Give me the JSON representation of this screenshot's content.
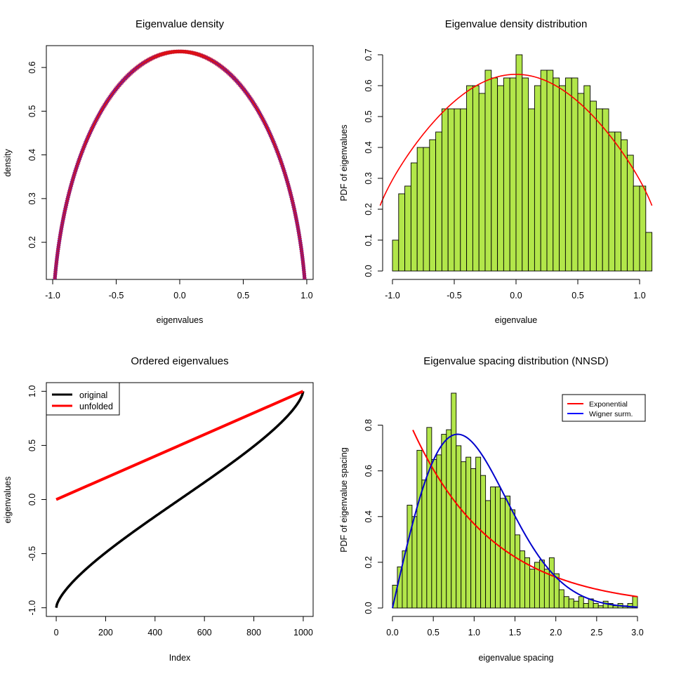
{
  "chart_data": [
    {
      "type": "scatter",
      "title": "Eigenvalue density",
      "xlabel": "eigenvalues",
      "ylabel": "density",
      "xlim": [
        -1.05,
        1.05
      ],
      "ylim": [
        0.115,
        0.65
      ],
      "xticks": [
        "-1.0",
        "-0.5",
        "0.0",
        "0.5",
        "1.0"
      ],
      "yticks": [
        "0.2",
        "0.3",
        "0.4",
        "0.5",
        "0.6"
      ],
      "series": [
        {
          "color": "#0000ff",
          "style": "curve",
          "formula": "semicircle",
          "x_range": [
            -1.0,
            1.0
          ]
        },
        {
          "color": "#ff0000",
          "style": "x-markers",
          "formula": "semicircle",
          "x_range": [
            -1.0,
            1.0
          ],
          "count": 400
        }
      ]
    },
    {
      "type": "bar",
      "title": "Eigenvalue density distribution",
      "xlabel": "eigenvalue",
      "ylabel": "PDF of eigenvalues",
      "xlim": [
        -1.0,
        1.0
      ],
      "ylim": [
        0.0,
        0.7
      ],
      "xticks": [
        "-1.0",
        "-0.5",
        "0.0",
        "0.5",
        "1.0"
      ],
      "yticks": [
        "0.0",
        "0.1",
        "0.2",
        "0.3",
        "0.4",
        "0.5",
        "0.6",
        "0.7"
      ],
      "bin_start": -1.0,
      "bin_width": 0.05,
      "values": [
        0.1,
        0.25,
        0.275,
        0.35,
        0.4,
        0.4,
        0.425,
        0.45,
        0.525,
        0.525,
        0.525,
        0.525,
        0.6,
        0.6,
        0.575,
        0.65,
        0.625,
        0.6,
        0.625,
        0.625,
        0.7,
        0.625,
        0.525,
        0.6,
        0.65,
        0.65,
        0.625,
        0.6,
        0.625,
        0.625,
        0.575,
        0.6,
        0.55,
        0.525,
        0.525,
        0.45,
        0.45,
        0.425,
        0.375,
        0.275,
        0.275,
        0.125
      ],
      "bar_color": "#b2e64a",
      "overlay": {
        "color": "#ff0000",
        "formula": "semicircle",
        "x_range": [
          -1.1,
          1.1
        ]
      }
    },
    {
      "type": "scatter",
      "title": "Ordered eigenvalues",
      "xlabel": "Index",
      "ylabel": "eigenvalues",
      "xlim": [
        -40,
        1040
      ],
      "ylim": [
        -1.08,
        1.08
      ],
      "xticks": [
        "0",
        "200",
        "400",
        "600",
        "800",
        "1000"
      ],
      "yticks": [
        "-1.0",
        "-0.5",
        "0.0",
        "0.5",
        "1.0"
      ],
      "legend": {
        "position": "top-left",
        "items": [
          {
            "label": "original",
            "color": "#000000"
          },
          {
            "label": "unfolded",
            "color": "#ff0000"
          }
        ]
      },
      "series": [
        {
          "name": "original",
          "color": "#000000",
          "n": 1000,
          "y_range": [
            -1.0,
            1.0
          ],
          "shape": "sorted semicircle"
        },
        {
          "name": "unfolded",
          "color": "#ff0000",
          "n": 1000,
          "y_range": [
            0.0,
            1.0
          ],
          "shape": "linear"
        }
      ]
    },
    {
      "type": "bar",
      "title": "Eigenvalue spacing distribution (NNSD)",
      "xlabel": "eigenvalue spacing",
      "ylabel": "PDF of eigenvalue spacing",
      "xlim": [
        0.0,
        3.0
      ],
      "ylim": [
        0.0,
        0.9
      ],
      "xticks": [
        "0.0",
        "0.5",
        "1.0",
        "1.5",
        "2.0",
        "2.5",
        "3.0"
      ],
      "yticks": [
        "0.0",
        "0.2",
        "0.4",
        "0.6",
        "0.8"
      ],
      "bin_start": 0.0,
      "bin_width": 0.06,
      "values": [
        0.1,
        0.18,
        0.25,
        0.45,
        0.4,
        0.69,
        0.56,
        0.79,
        0.65,
        0.67,
        0.76,
        0.78,
        0.94,
        0.71,
        0.64,
        0.66,
        0.61,
        0.66,
        0.58,
        0.47,
        0.53,
        0.53,
        0.48,
        0.49,
        0.43,
        0.32,
        0.25,
        0.22,
        0.17,
        0.2,
        0.21,
        0.17,
        0.22,
        0.15,
        0.08,
        0.05,
        0.04,
        0.03,
        0.05,
        0.02,
        0.04,
        0.02,
        0.01,
        0.03,
        0.02,
        0.01,
        0.02,
        0.01,
        0.02,
        0.05
      ],
      "bar_color": "#b2e64a",
      "legend": {
        "position": "top-right",
        "items": [
          {
            "label": "Exponential",
            "color": "#ff0000"
          },
          {
            "label": "Wigner surm.",
            "color": "#0000ff"
          }
        ]
      },
      "series": [
        {
          "name": "Exponential",
          "color": "#ff0000",
          "formula": "exp(-x)",
          "x_range": [
            0.25,
            3.0
          ]
        },
        {
          "name": "Wigner surm.",
          "color": "#0000ff",
          "formula": "wigner surmise",
          "x_range": [
            0.0,
            3.0
          ]
        }
      ]
    }
  ]
}
